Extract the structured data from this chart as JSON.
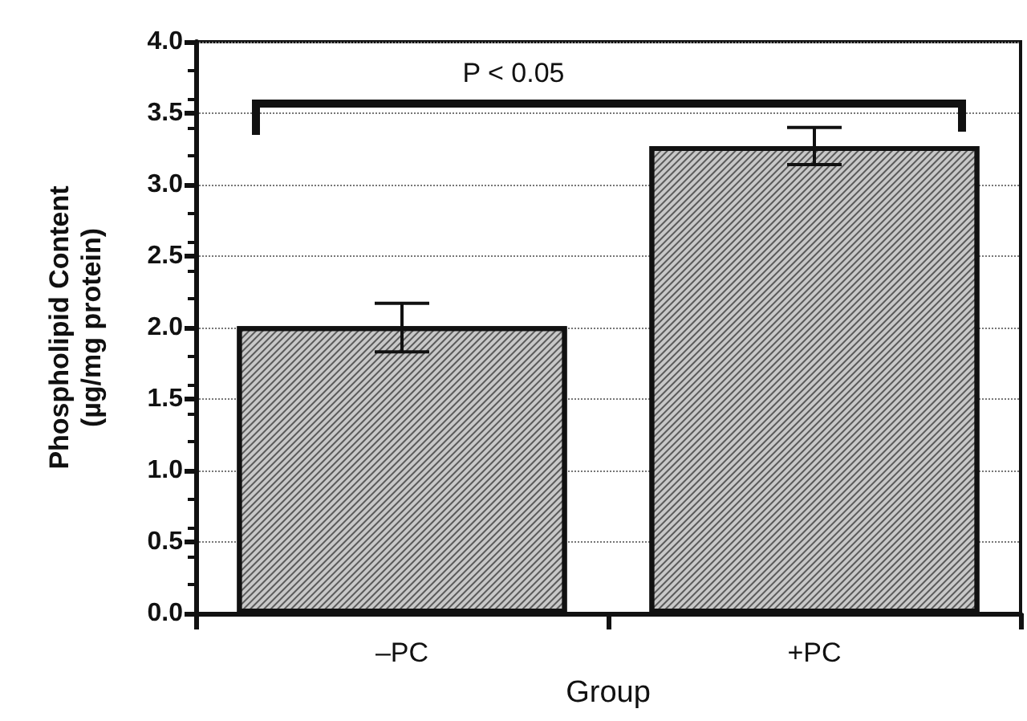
{
  "chart_data": {
    "type": "bar",
    "categories": [
      "–PC",
      "+PC"
    ],
    "values": [
      2.01,
      3.27
    ],
    "errors": [
      [
        1.83,
        2.17
      ],
      [
        3.14,
        3.4
      ]
    ],
    "color": "#c8c8c8",
    "xlabel": "Group",
    "ylabel": "Phospholipid Content\n(µg/mg protein)",
    "ylim": [
      0,
      4
    ],
    "yticks": [
      {
        "value": 0,
        "label": "0.0"
      },
      {
        "value": 0.5,
        "label": "0.5"
      },
      {
        "value": 1,
        "label": "1.0"
      },
      {
        "value": 1.5,
        "label": "1.5"
      },
      {
        "value": 2,
        "label": "2.0"
      },
      {
        "value": 2.5,
        "label": "2.5"
      },
      {
        "value": 3,
        "label": "3.0"
      },
      {
        "value": 3.5,
        "label": "3.5"
      },
      {
        "value": 4,
        "label": "4.0"
      }
    ],
    "grid": "y",
    "annotations": [
      "P < 0.05"
    ]
  }
}
